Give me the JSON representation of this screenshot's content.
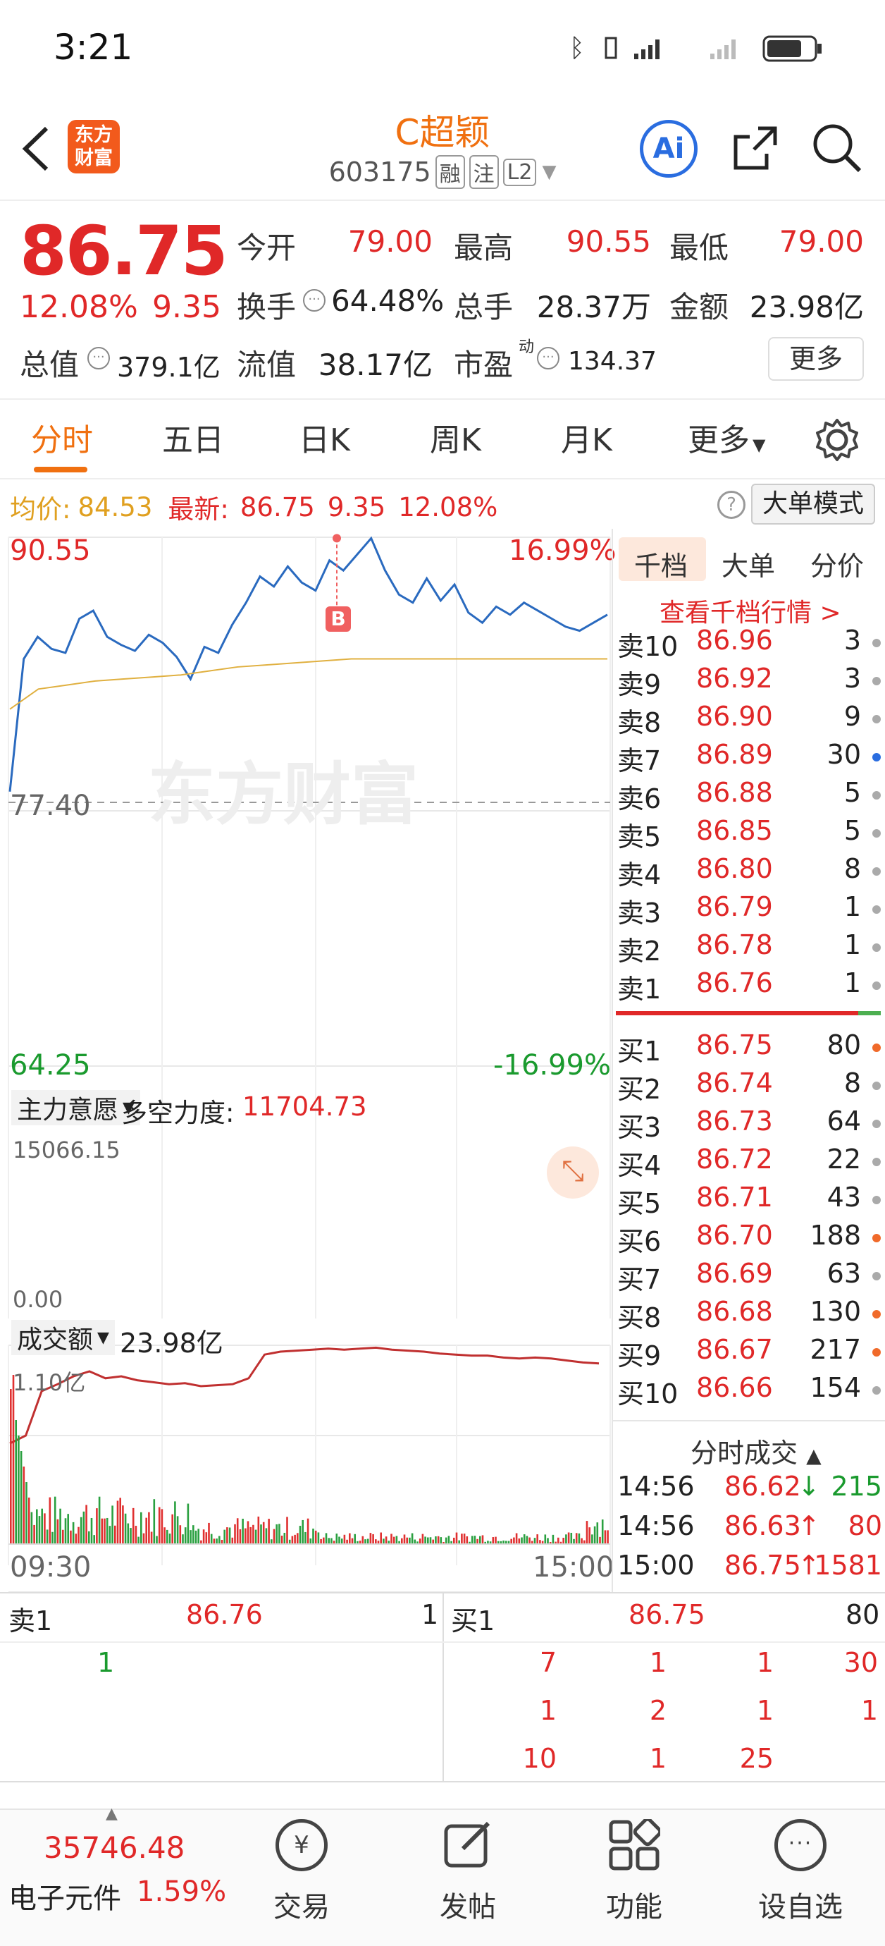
{
  "status": {
    "time": "3:21"
  },
  "header": {
    "title": "C超颖",
    "code": "603175",
    "tags": [
      "融",
      "注",
      "L2"
    ],
    "logo_line1": "东方",
    "logo_line2": "财富",
    "ai_label": "Ai"
  },
  "quote": {
    "price": "86.75",
    "pct": "12.08%",
    "change": "9.35",
    "open_label": "今开",
    "open": "79.00",
    "high_label": "最高",
    "high": "90.55",
    "low_label": "最低",
    "low": "79.00",
    "turnover_label": "换手",
    "turnover": "64.48%",
    "vol_label": "总手",
    "vol": "28.37万",
    "amount_label": "金额",
    "amount": "23.98亿",
    "mktcap_label": "总值",
    "mktcap": "379.1亿",
    "float_label": "流值",
    "float": "38.17亿",
    "pe_label": "市盈",
    "pe_sup": "动",
    "pe": "134.37",
    "more": "更多"
  },
  "tabs": [
    "分时",
    "五日",
    "日K",
    "周K",
    "月K",
    "更多"
  ],
  "avgrow": {
    "avg_label": "均价:",
    "avg": "84.53",
    "last_label": "最新:",
    "last": "86.75",
    "chg": "9.35",
    "pct": "12.08%",
    "mode": "大单模式"
  },
  "chart": {
    "top_price": "90.55",
    "top_pct": "16.99%",
    "mid_price": "77.40",
    "bottom_price": "64.25",
    "bottom_pct": "-16.99%",
    "watermark": "东方财富",
    "b_marker": "B",
    "ind1_selector": "主力意愿",
    "ind1_label": "多空力度:",
    "ind1_value": "11704.73",
    "ind1_top": "15066.15",
    "ind1_bottom": "0.00",
    "ind2_selector": "成交额",
    "ind2_value": "23.98亿",
    "ind2_top": "1.10亿",
    "time_start": "09:30",
    "time_end": "15:00"
  },
  "chart_data": {
    "type": "line",
    "xlabel": "",
    "ylabel": "",
    "ylim": [
      64.25,
      90.55
    ],
    "prev_close": 77.4,
    "series": [
      {
        "values": [
          77.9,
          84.5,
          85.6,
          85.0,
          84.8,
          86.5,
          86.9,
          85.6,
          85.2,
          84.9,
          85.7,
          85.3,
          84.6,
          83.5,
          85.1,
          84.8,
          86.2,
          87.3,
          88.6,
          88.1,
          89.1,
          88.3,
          87.9,
          89.4,
          88.9,
          89.7,
          90.5,
          88.9,
          87.7,
          87.3,
          88.5,
          87.4,
          88.2,
          86.8,
          86.3,
          87.1,
          86.7,
          87.3,
          86.9,
          86.5,
          86.1,
          85.9,
          86.3,
          86.7
        ]
      },
      {
        "values": [
          82.0,
          83.0,
          83.2,
          83.4,
          83.5,
          83.6,
          83.7,
          83.9,
          84.1,
          84.2,
          84.3,
          84.4,
          84.5,
          84.5,
          84.5,
          84.5,
          84.5,
          84.5,
          84.5,
          84.5,
          84.5,
          84.5
        ]
      }
    ]
  },
  "orderbook": {
    "tabs": [
      "千档",
      "大单",
      "分价"
    ],
    "link": "查看千档行情 >",
    "sells": [
      [
        "卖10",
        "86.96",
        "3"
      ],
      [
        "卖9",
        "86.92",
        "3"
      ],
      [
        "卖8",
        "86.90",
        "9"
      ],
      [
        "卖7",
        "86.89",
        "30"
      ],
      [
        "卖6",
        "86.88",
        "5"
      ],
      [
        "卖5",
        "86.85",
        "5"
      ],
      [
        "卖4",
        "86.80",
        "8"
      ],
      [
        "卖3",
        "86.79",
        "1"
      ],
      [
        "卖2",
        "86.78",
        "1"
      ],
      [
        "卖1",
        "86.76",
        "1"
      ]
    ],
    "buys": [
      [
        "买1",
        "86.75",
        "80"
      ],
      [
        "买2",
        "86.74",
        "8"
      ],
      [
        "买3",
        "86.73",
        "64"
      ],
      [
        "买4",
        "86.72",
        "22"
      ],
      [
        "买5",
        "86.71",
        "43"
      ],
      [
        "买6",
        "86.70",
        "188"
      ],
      [
        "买7",
        "86.69",
        "63"
      ],
      [
        "买8",
        "86.68",
        "130"
      ],
      [
        "买9",
        "86.67",
        "217"
      ],
      [
        "买10",
        "86.66",
        "154"
      ]
    ]
  },
  "trades": {
    "title": "分时成交",
    "rows": [
      [
        "14:56",
        "86.62",
        "↓",
        "215"
      ],
      [
        "14:56",
        "86.63",
        "↑",
        "80"
      ],
      [
        "15:00",
        "86.75",
        "↑",
        "1581"
      ]
    ]
  },
  "level1": {
    "sell_label": "卖1",
    "sell_price": "86.76",
    "sell_vol": "1",
    "buy_label": "买1",
    "buy_price": "86.75",
    "buy_vol": "80",
    "sell_queue": [
      "1"
    ],
    "buy_queue": [
      [
        "7",
        "1",
        "1",
        "30"
      ],
      [
        "1",
        "2",
        "1",
        "1"
      ],
      [
        "10",
        "1",
        "25",
        ""
      ]
    ]
  },
  "bottom": {
    "index_value": "35746.48",
    "index_name": "电子元件",
    "index_pct": "1.59%",
    "nav": [
      "交易",
      "发帖",
      "功能",
      "设自选"
    ]
  }
}
